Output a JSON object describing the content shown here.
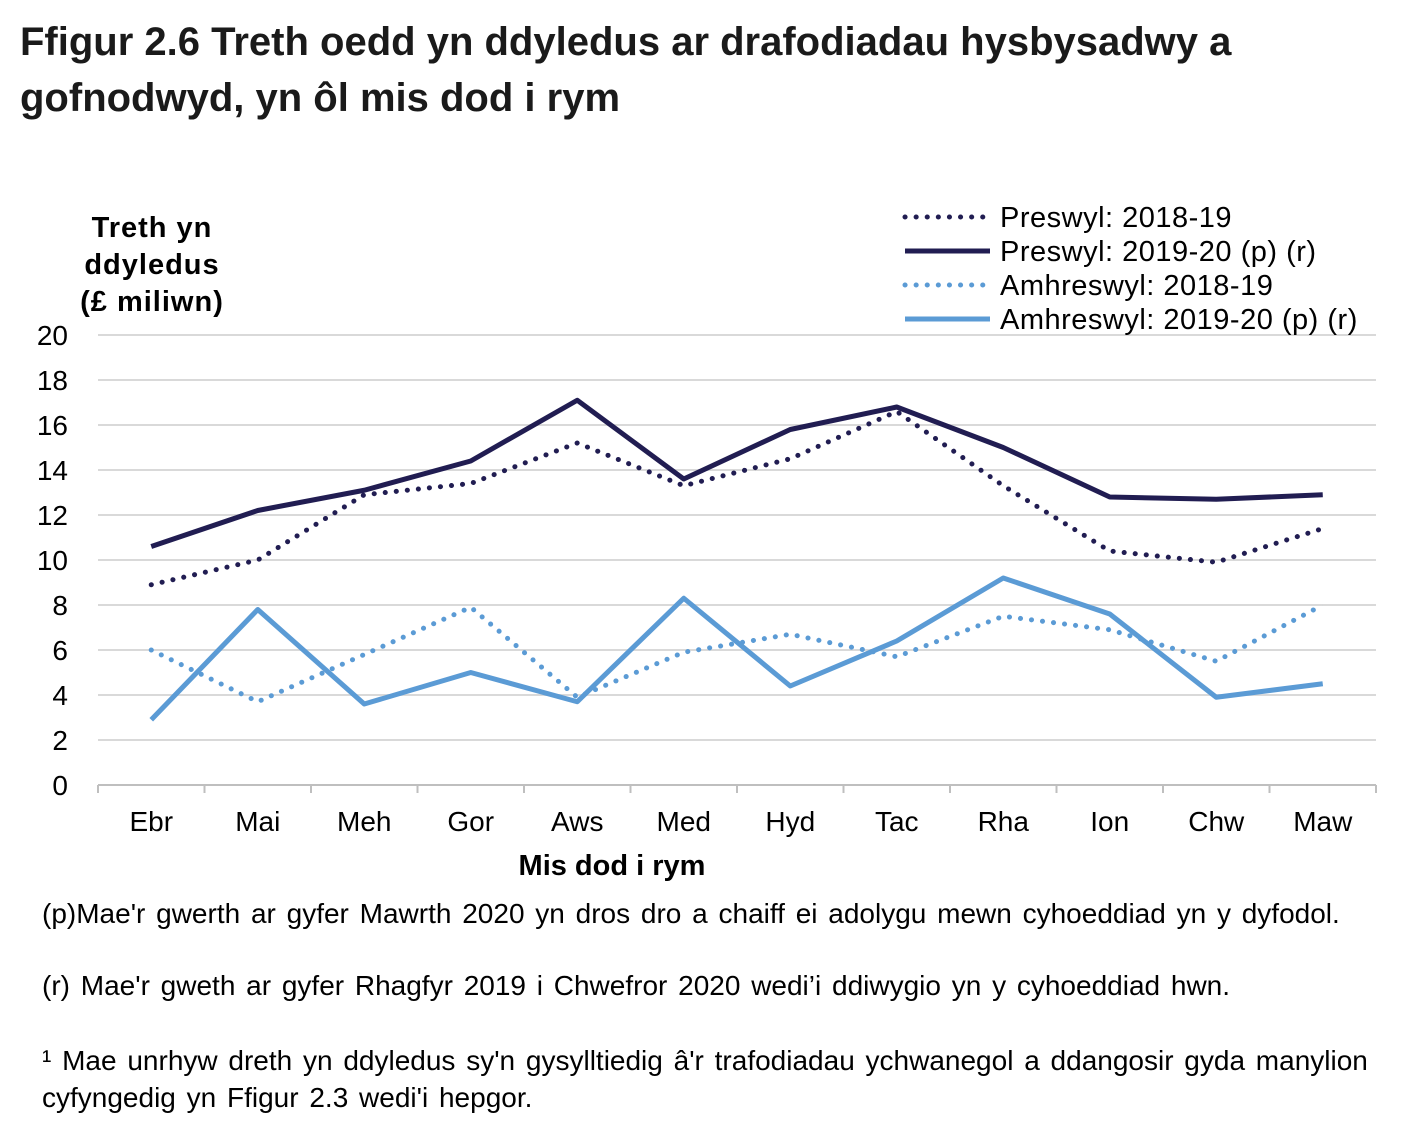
{
  "chart_data": {
    "type": "line",
    "title": "Ffigur 2.6  Treth oedd yn ddyledus ar drafodiadau hysbysadwy a gofnodwyd, yn ôl mis dod i rym",
    "ylabel": [
      "Treth yn",
      "ddyledus",
      "(£ miliwn)"
    ],
    "xlabel": "Mis dod i rym",
    "ylim": [
      0,
      20
    ],
    "yticks": [
      0,
      2,
      4,
      6,
      8,
      10,
      12,
      14,
      16,
      18,
      20
    ],
    "grid": true,
    "legend_position": "top-right",
    "categories": [
      "Ebr",
      "Mai",
      "Meh",
      "Gor",
      "Aws",
      "Med",
      "Hyd",
      "Tac",
      "Rha",
      "Ion",
      "Chw",
      "Maw"
    ],
    "series": [
      {
        "name": "Preswyl: 2018-19",
        "color": "#211d52",
        "style": "dotted",
        "values": [
          8.9,
          10.0,
          12.9,
          13.4,
          15.2,
          13.3,
          14.5,
          16.6,
          13.3,
          10.4,
          9.9,
          11.4
        ]
      },
      {
        "name": "Preswyl: 2019-20 (p) (r)",
        "color": "#211d52",
        "style": "solid",
        "values": [
          10.6,
          12.2,
          13.1,
          14.4,
          17.1,
          13.6,
          15.8,
          16.8,
          15.0,
          12.8,
          12.7,
          12.9
        ]
      },
      {
        "name": "Amhreswyl: 2018-19",
        "color": "#5b9bd5",
        "style": "dotted",
        "values": [
          6.0,
          3.7,
          5.8,
          7.9,
          3.9,
          5.9,
          6.7,
          5.7,
          7.5,
          6.9,
          5.5,
          8.0
        ]
      },
      {
        "name": "Amhreswyl: 2019-20 (p) (r)",
        "color": "#5b9bd5",
        "style": "solid",
        "values": [
          2.9,
          7.8,
          3.6,
          5.0,
          3.7,
          8.3,
          4.4,
          6.4,
          9.2,
          7.6,
          3.9,
          4.5
        ]
      }
    ]
  },
  "footnotes": [
    " (p)Mae'r gwerth ar gyfer Mawrth 2020 yn dros dro a chaiff ei adolygu mewn cyhoeddiad yn y dyfodol.",
    " (r) Mae'r gweth ar gyfer Rhagfyr 2019 i Chwefror 2020 wedi’i ddiwygio yn y cyhoeddiad hwn.",
    "¹ Mae unrhyw dreth yn ddyledus sy'n gysylltiedig â'r trafodiadau ychwanegol a ddangosir gyda manylion cyfyngedig yn Ffigur 2.3 wedi'i hepgor."
  ]
}
